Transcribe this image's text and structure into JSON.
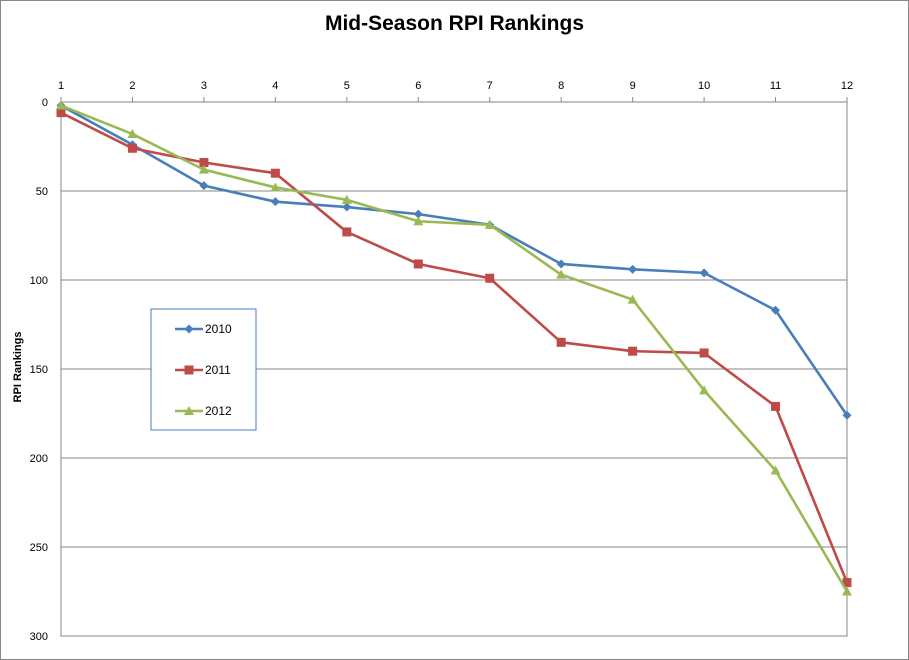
{
  "chart_data": {
    "type": "line",
    "title": "Mid-Season RPI Rankings",
    "xlabel": "",
    "ylabel": "RPI Rankings",
    "x": [
      1,
      2,
      3,
      4,
      5,
      6,
      7,
      8,
      9,
      10,
      11,
      12
    ],
    "xlim": [
      1,
      12
    ],
    "x_axis_position": "top",
    "ylim": [
      0,
      300
    ],
    "y_inverted": true,
    "yticks": [
      0,
      50,
      100,
      150,
      200,
      250,
      300
    ],
    "grid": "horizontal",
    "legend_position": "left-middle",
    "series": [
      {
        "name": "2010",
        "color": "#4a7ebb",
        "marker": "diamond",
        "values": [
          2,
          24,
          47,
          56,
          59,
          63,
          69,
          91,
          94,
          96,
          117,
          176
        ]
      },
      {
        "name": "2011",
        "color": "#be4b48",
        "marker": "square",
        "values": [
          6,
          26,
          34,
          40,
          73,
          91,
          99,
          135,
          140,
          141,
          171,
          270
        ]
      },
      {
        "name": "2012",
        "color": "#98b954",
        "marker": "triangle",
        "values": [
          2,
          18,
          38,
          48,
          55,
          67,
          69,
          97,
          111,
          162,
          207,
          275
        ]
      }
    ]
  }
}
